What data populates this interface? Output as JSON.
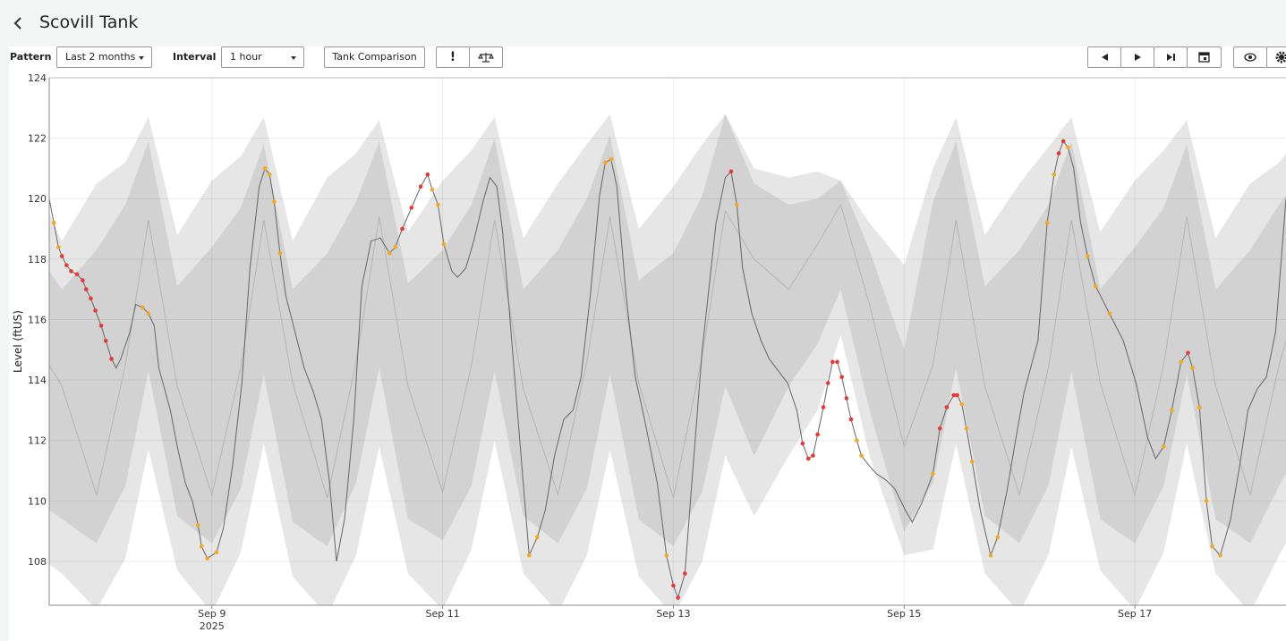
{
  "header": {
    "title": "Scovill Tank"
  },
  "toolbar": {
    "pattern_label": "Pattern",
    "pattern_value": "Last 2 months",
    "interval_label": "Interval",
    "interval_value": "1 hour",
    "comparison_button": "Tank Comparison",
    "alert_button": "!"
  },
  "chart_data": {
    "type": "line",
    "y_label": "Level (ftUS)",
    "x_year_label": "2025",
    "xlim": [
      7.59,
      18.31
    ],
    "ylim": [
      106.55,
      124
    ],
    "xticks": [
      {
        "value": 9,
        "label": "Sep 9"
      },
      {
        "value": 11,
        "label": "Sep 11"
      },
      {
        "value": 13,
        "label": "Sep 13"
      },
      {
        "value": 15,
        "label": "Sep 15"
      },
      {
        "value": 17,
        "label": "Sep 17"
      }
    ],
    "yticks": [
      108,
      110,
      112,
      114,
      116,
      118,
      120,
      122,
      124
    ],
    "grid": true,
    "band_x": [
      7.59,
      7.7,
      8.0,
      8.25,
      8.45,
      8.7,
      9.0,
      9.25,
      9.45,
      9.7,
      10.0,
      10.25,
      10.45,
      10.7,
      11.0,
      11.25,
      11.45,
      11.7,
      12.0,
      12.25,
      12.45,
      12.7,
      13.0,
      13.25,
      13.45,
      13.7,
      14.0,
      14.25,
      14.45,
      14.7,
      15.0,
      15.25,
      15.45,
      15.7,
      16.0,
      16.25,
      16.45,
      16.7,
      17.0,
      17.25,
      17.45,
      17.7,
      18.0,
      18.25,
      18.31
    ],
    "bands": [
      {
        "color": "#e6e6e6",
        "upper": [
          119.5,
          118.6,
          120.5,
          121.2,
          122.7,
          118.8,
          120.6,
          121.4,
          122.7,
          118.6,
          120.7,
          121.5,
          122.6,
          118.9,
          120.6,
          121.6,
          122.7,
          118.7,
          120.5,
          121.8,
          122.8,
          119.0,
          120.4,
          121.8,
          122.8,
          121.0,
          120.7,
          120.9,
          120.6,
          119.2,
          117.8,
          121.0,
          122.7,
          118.8,
          120.5,
          121.7,
          122.7,
          118.9,
          120.6,
          121.6,
          122.6,
          118.7,
          120.5,
          121.2,
          121.5
        ],
        "lower": [
          107.9,
          107.6,
          106.4,
          108.1,
          111.7,
          107.7,
          106.3,
          108.3,
          111.9,
          107.5,
          106.2,
          108.2,
          111.8,
          107.6,
          106.4,
          108.4,
          112.0,
          107.6,
          106.3,
          108.2,
          111.7,
          107.5,
          106.2,
          108.0,
          111.5,
          109.5,
          111.5,
          113.0,
          115.5,
          111.5,
          108.2,
          108.4,
          111.9,
          107.6,
          106.3,
          108.2,
          111.8,
          107.7,
          106.4,
          108.3,
          111.9,
          107.6,
          106.3,
          108.2,
          108.6
        ]
      },
      {
        "color": "#d2d2d2",
        "upper": [
          117.6,
          117.0,
          118.3,
          119.8,
          121.9,
          117.1,
          118.4,
          119.7,
          121.8,
          117.0,
          118.2,
          119.9,
          121.9,
          117.2,
          118.3,
          119.8,
          122.0,
          117.0,
          118.3,
          120.0,
          122.1,
          117.3,
          118.2,
          120.1,
          122.8,
          120.5,
          119.8,
          120.0,
          120.6,
          118.3,
          115.0,
          119.9,
          121.9,
          117.1,
          118.3,
          119.8,
          121.9,
          117.0,
          118.4,
          119.7,
          121.8,
          117.0,
          118.3,
          119.8,
          120.1
        ],
        "lower": [
          109.7,
          109.4,
          108.6,
          110.5,
          114.3,
          109.5,
          108.6,
          110.4,
          114.2,
          109.3,
          108.5,
          110.6,
          114.4,
          109.4,
          108.7,
          110.5,
          114.3,
          109.5,
          108.6,
          110.4,
          114.2,
          109.4,
          108.5,
          110.3,
          113.8,
          111.5,
          113.8,
          115.2,
          117.0,
          113.0,
          109.0,
          110.6,
          114.4,
          109.5,
          108.6,
          110.5,
          114.3,
          109.4,
          108.6,
          110.5,
          114.2,
          109.4,
          108.6,
          110.5,
          110.9
        ]
      }
    ],
    "median": {
      "color": "#b4b4b4",
      "values": [
        114.5,
        113.8,
        110.2,
        114.5,
        119.3,
        113.8,
        110.2,
        114.4,
        119.3,
        113.9,
        110.1,
        114.6,
        119.4,
        113.8,
        110.3,
        114.5,
        119.3,
        113.7,
        110.2,
        114.6,
        119.4,
        113.9,
        110.1,
        114.8,
        119.6,
        118.0,
        117.0,
        118.5,
        119.8,
        116.5,
        111.8,
        114.5,
        119.3,
        113.8,
        110.2,
        114.4,
        119.3,
        113.9,
        110.2,
        114.5,
        119.4,
        113.8,
        110.2,
        114.5,
        115.3
      ]
    },
    "color": "#666666",
    "x": [
      7.59,
      7.63,
      7.67,
      7.7,
      7.74,
      7.78,
      7.83,
      7.88,
      7.91,
      7.95,
      7.99,
      8.04,
      8.08,
      8.13,
      8.17,
      8.21,
      8.29,
      8.34,
      8.4,
      8.45,
      8.5,
      8.54,
      8.64,
      8.7,
      8.77,
      8.83,
      8.88,
      8.91,
      8.96,
      9.04,
      9.1,
      9.18,
      9.26,
      9.33,
      9.41,
      9.46,
      9.5,
      9.54,
      9.59,
      9.64,
      9.72,
      9.8,
      9.88,
      9.95,
      10.02,
      10.08,
      10.15,
      10.23,
      10.3,
      10.38,
      10.46,
      10.54,
      10.59,
      10.65,
      10.73,
      10.81,
      10.87,
      10.91,
      10.96,
      11.01,
      11.08,
      11.13,
      11.2,
      11.27,
      11.35,
      11.41,
      11.47,
      11.52,
      11.58,
      11.66,
      11.75,
      11.82,
      11.89,
      11.97,
      12.05,
      12.13,
      12.2,
      12.28,
      12.36,
      12.41,
      12.46,
      12.51,
      12.59,
      12.67,
      12.75,
      12.86,
      12.94,
      13.0,
      13.04,
      13.1,
      13.16,
      13.25,
      13.37,
      13.45,
      13.5,
      13.55,
      13.6,
      13.68,
      13.76,
      13.83,
      13.91,
      13.99,
      14.07,
      14.12,
      14.17,
      14.21,
      14.25,
      14.3,
      14.34,
      14.38,
      14.42,
      14.46,
      14.5,
      14.54,
      14.59,
      14.63,
      14.69,
      14.76,
      14.84,
      14.92,
      15.01,
      15.07,
      15.15,
      15.25,
      15.31,
      15.37,
      15.43,
      15.46,
      15.5,
      15.54,
      15.59,
      15.66,
      15.75,
      15.81,
      15.89,
      15.97,
      16.04,
      16.16,
      16.24,
      16.3,
      16.34,
      16.38,
      16.42,
      16.47,
      16.53,
      16.59,
      16.66,
      16.78,
      16.9,
      17.01,
      17.11,
      17.18,
      17.25,
      17.32,
      17.4,
      17.46,
      17.5,
      17.56,
      17.62,
      17.67,
      17.74,
      17.83,
      17.91,
      17.98,
      18.06,
      18.14,
      18.22,
      18.31
    ],
    "values": [
      120.0,
      119.2,
      118.4,
      118.1,
      117.8,
      117.6,
      117.5,
      117.3,
      117.0,
      116.7,
      116.3,
      115.8,
      115.3,
      114.7,
      114.4,
      114.7,
      115.6,
      116.5,
      116.4,
      116.2,
      115.8,
      114.4,
      113.0,
      111.8,
      110.6,
      110.0,
      109.2,
      108.5,
      108.1,
      108.3,
      109.1,
      111.2,
      113.9,
      117.7,
      120.4,
      121.0,
      120.8,
      119.9,
      118.2,
      116.8,
      115.6,
      114.4,
      113.6,
      112.7,
      110.6,
      108.0,
      109.4,
      112.7,
      117.1,
      118.6,
      118.7,
      118.2,
      118.4,
      119.0,
      119.7,
      120.4,
      120.8,
      120.3,
      119.8,
      118.5,
      117.6,
      117.4,
      117.7,
      118.6,
      119.9,
      120.7,
      120.4,
      118.9,
      116.2,
      112.4,
      108.2,
      108.8,
      109.7,
      111.5,
      112.7,
      113.0,
      114.1,
      116.8,
      120.1,
      121.2,
      121.3,
      120.4,
      116.8,
      114.1,
      112.7,
      110.6,
      108.2,
      107.2,
      106.8,
      107.6,
      110.6,
      115.0,
      119.2,
      120.7,
      120.9,
      119.8,
      117.7,
      116.2,
      115.3,
      114.7,
      114.3,
      113.9,
      113.0,
      111.9,
      111.4,
      111.5,
      112.2,
      113.1,
      113.9,
      114.6,
      114.6,
      114.1,
      113.4,
      112.7,
      112.0,
      111.5,
      111.2,
      110.9,
      110.7,
      110.4,
      109.7,
      109.3,
      109.9,
      110.9,
      112.4,
      113.1,
      113.5,
      113.5,
      113.2,
      112.4,
      111.3,
      109.7,
      108.2,
      108.8,
      110.3,
      112.1,
      113.6,
      115.3,
      119.2,
      120.8,
      121.5,
      121.9,
      121.7,
      121.0,
      119.2,
      118.1,
      117.1,
      116.2,
      115.3,
      113.9,
      112.1,
      111.4,
      111.8,
      113.0,
      114.6,
      114.9,
      114.4,
      113.1,
      110.0,
      108.5,
      108.2,
      109.4,
      111.2,
      113.0,
      113.7,
      114.1,
      115.6,
      120.0
    ],
    "markers": [
      {
        "color": "#e53935",
        "x": [
          7.7,
          7.74,
          7.78,
          7.83,
          7.88,
          7.91,
          7.95,
          7.99,
          8.04,
          8.08,
          8.13,
          10.65,
          10.73,
          10.81,
          10.87,
          13.0,
          13.04,
          13.1,
          13.5,
          14.12,
          14.17,
          14.21,
          14.25,
          14.3,
          14.34,
          14.38,
          14.42,
          14.46,
          14.5,
          14.54,
          15.31,
          15.37,
          15.43,
          15.46,
          16.34,
          16.38,
          17.46
        ],
        "values": [
          118.1,
          117.8,
          117.6,
          117.5,
          117.3,
          117.0,
          116.7,
          116.3,
          115.8,
          115.3,
          114.7,
          119.0,
          119.7,
          120.4,
          120.8,
          107.2,
          106.8,
          107.6,
          120.9,
          111.9,
          111.4,
          111.5,
          112.2,
          113.1,
          113.9,
          114.6,
          114.6,
          114.1,
          113.4,
          112.7,
          112.4,
          113.1,
          113.5,
          113.5,
          121.5,
          121.9,
          114.9
        ]
      },
      {
        "color": "#f5a623",
        "x": [
          7.63,
          7.67,
          8.4,
          8.45,
          8.88,
          8.91,
          8.96,
          9.04,
          9.46,
          9.5,
          9.54,
          9.59,
          10.54,
          10.59,
          10.91,
          10.96,
          11.01,
          11.75,
          11.82,
          12.41,
          12.46,
          12.94,
          13.55,
          14.59,
          14.63,
          15.25,
          15.5,
          15.54,
          15.59,
          15.75,
          15.81,
          16.24,
          16.3,
          16.42,
          16.59,
          16.66,
          16.78,
          17.25,
          17.32,
          17.4,
          17.5,
          17.56,
          17.62,
          17.67,
          17.74
        ],
        "values": [
          119.2,
          118.4,
          116.4,
          116.2,
          109.2,
          108.5,
          108.1,
          108.3,
          121.0,
          120.8,
          119.9,
          118.2,
          118.2,
          118.4,
          120.3,
          119.8,
          118.5,
          108.2,
          108.8,
          121.2,
          121.3,
          108.2,
          119.8,
          112.0,
          111.5,
          110.9,
          113.2,
          112.4,
          111.3,
          108.2,
          108.8,
          119.2,
          120.8,
          121.7,
          118.1,
          117.1,
          116.2,
          111.8,
          113.0,
          114.6,
          114.4,
          113.1,
          110.0,
          108.5,
          108.2
        ]
      }
    ]
  }
}
